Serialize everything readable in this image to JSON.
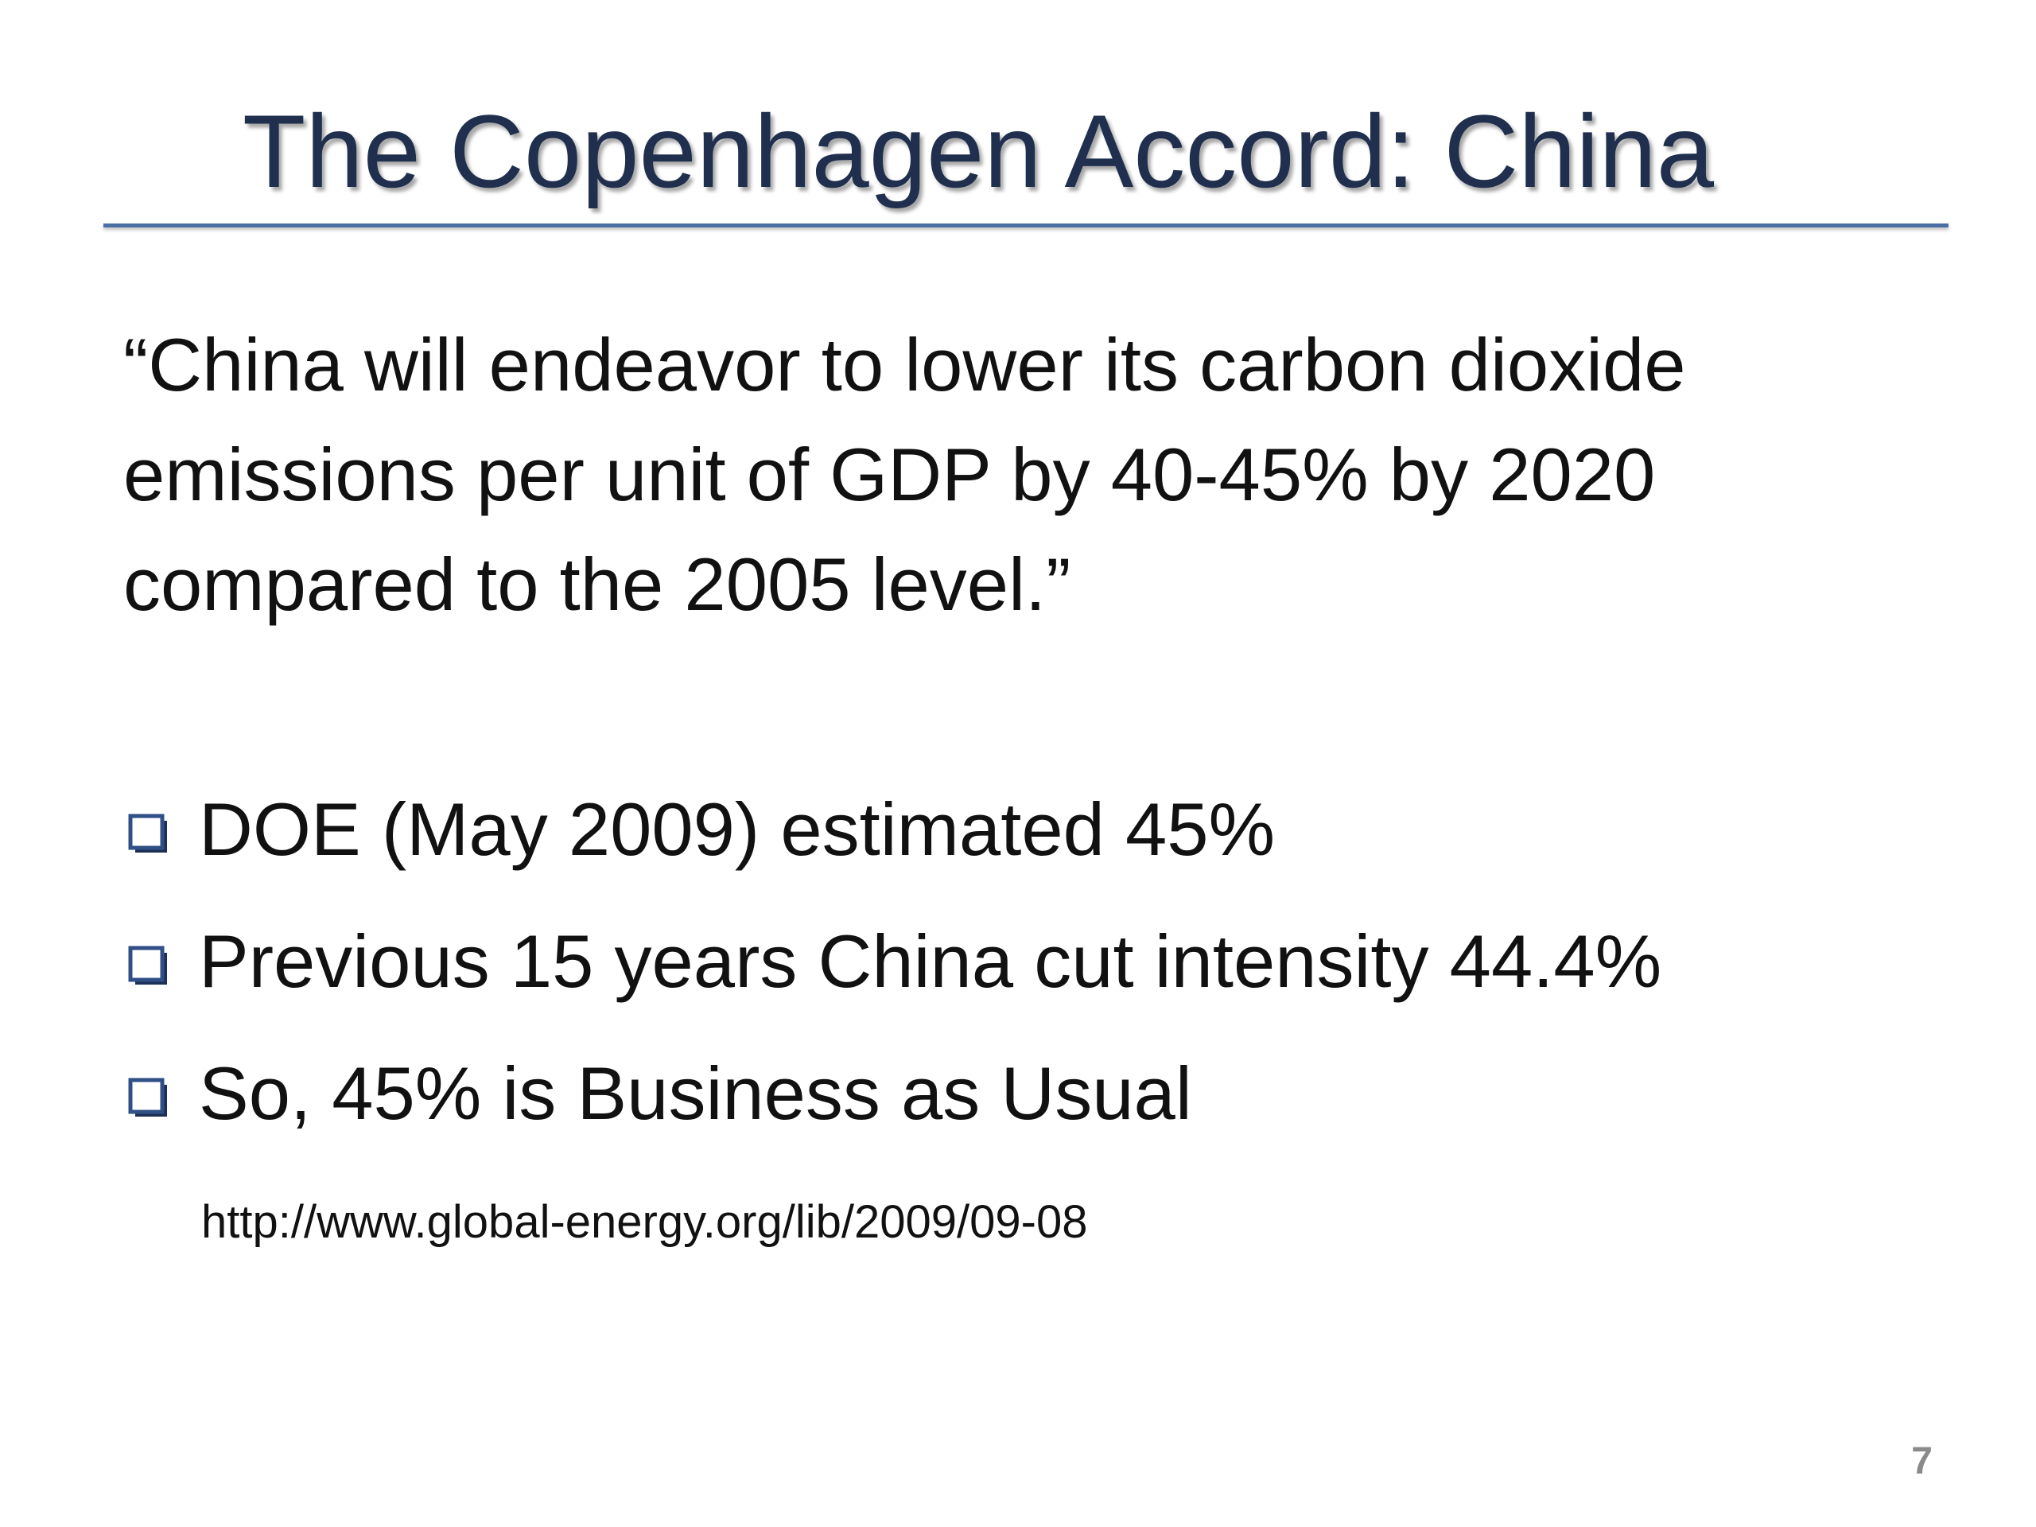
{
  "slide": {
    "title": "The Copenhagen Accord:  China",
    "quote_lines": [
      "“China will endeavor to lower its carbon dioxide",
      "emissions per unit of GDP by 40-45% by 2020",
      "compared to the 2005 level.”"
    ],
    "bullets": [
      {
        "text": "DOE (May 2009) estimated 45%",
        "icon": "checkbox-square-icon"
      },
      {
        "text": "Previous 15 years China cut intensity 44.4%",
        "icon": "checkbox-square-icon"
      },
      {
        "text": "So, 45% is Business as Usual",
        "icon": "checkbox-square-icon"
      }
    ],
    "source_url": "http://www.global-energy.org/lib/2009/09-08",
    "page_number": "7"
  },
  "colors": {
    "title": "#1f2f4d",
    "rule": "#4a6fa5",
    "bullet_icon": "#2f4f86",
    "text": "#111111",
    "page_number": "#8a8a8a"
  }
}
